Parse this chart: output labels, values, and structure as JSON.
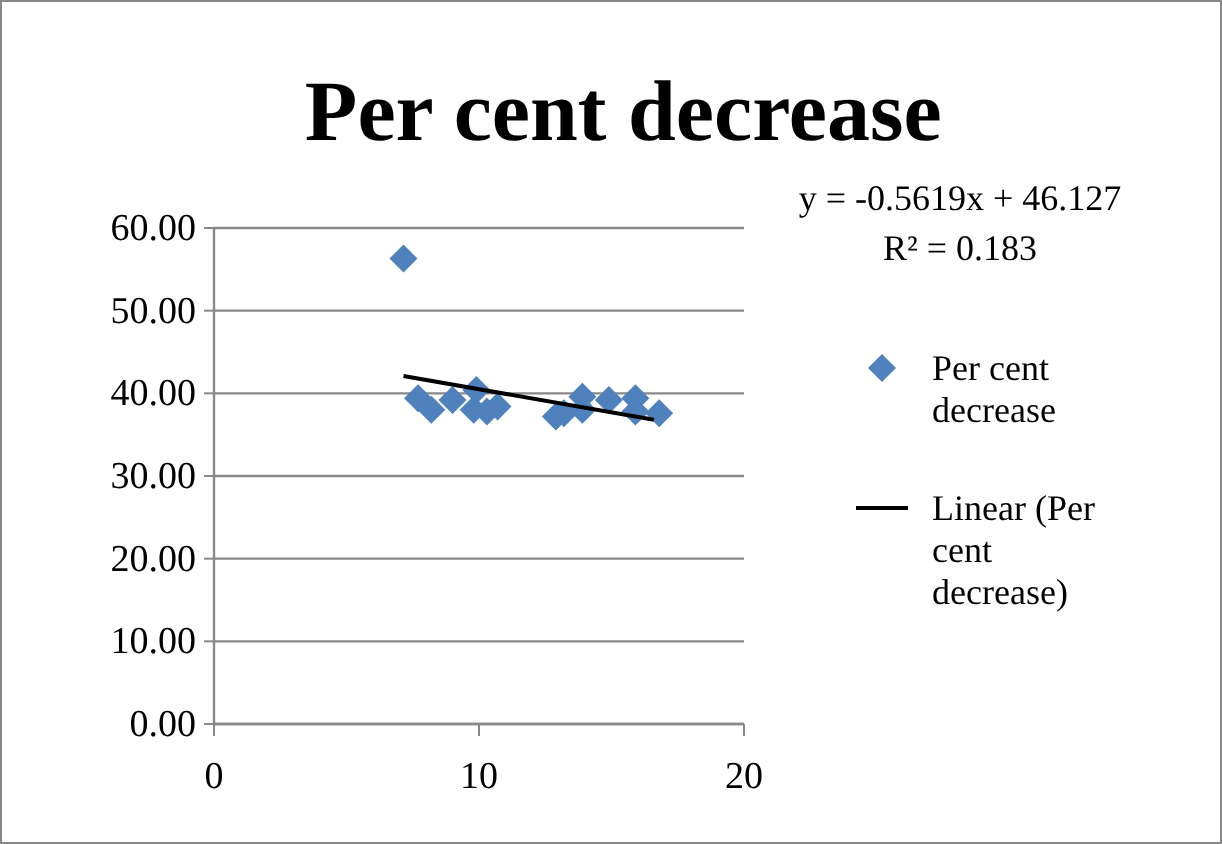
{
  "chart_data": {
    "type": "scatter",
    "title": "Per cent decrease",
    "annotations": [
      "y = -0.5619x + 46.127",
      "R² = 0.183"
    ],
    "series": [
      {
        "name": "Per cent decrease",
        "color": "#4f81bd",
        "marker": "diamond",
        "x": [
          7.15,
          7.7,
          8.2,
          9.0,
          9.9,
          9.8,
          10.3,
          10.7,
          12.9,
          13.2,
          13.9,
          13.9,
          14.9,
          15.9,
          15.9,
          16.8
        ],
        "values": [
          56.3,
          39.4,
          38.0,
          39.2,
          40.4,
          38.0,
          37.8,
          38.4,
          37.2,
          37.6,
          39.6,
          38.0,
          39.2,
          39.4,
          37.8,
          37.6
        ]
      },
      {
        "name": "Linear (Per cent decrease)",
        "type": "line",
        "color": "#000000",
        "marker": "none",
        "line_style": "solid",
        "x": [
          7.15,
          16.6
        ],
        "values": [
          42.1,
          36.8
        ]
      }
    ],
    "xlim": [
      0,
      20
    ],
    "xticks": [
      0,
      10,
      20
    ],
    "ylim": [
      0,
      60
    ],
    "yticks": [
      {
        "value": 0,
        "label": "0.00"
      },
      {
        "value": 10,
        "label": "10.00"
      },
      {
        "value": 20,
        "label": "20.00"
      },
      {
        "value": 30,
        "label": "30.00"
      },
      {
        "value": 40,
        "label": "40.00"
      },
      {
        "value": 50,
        "label": "50.00"
      },
      {
        "value": 60,
        "label": "60.00"
      }
    ],
    "grid": "y",
    "legend": "right"
  }
}
